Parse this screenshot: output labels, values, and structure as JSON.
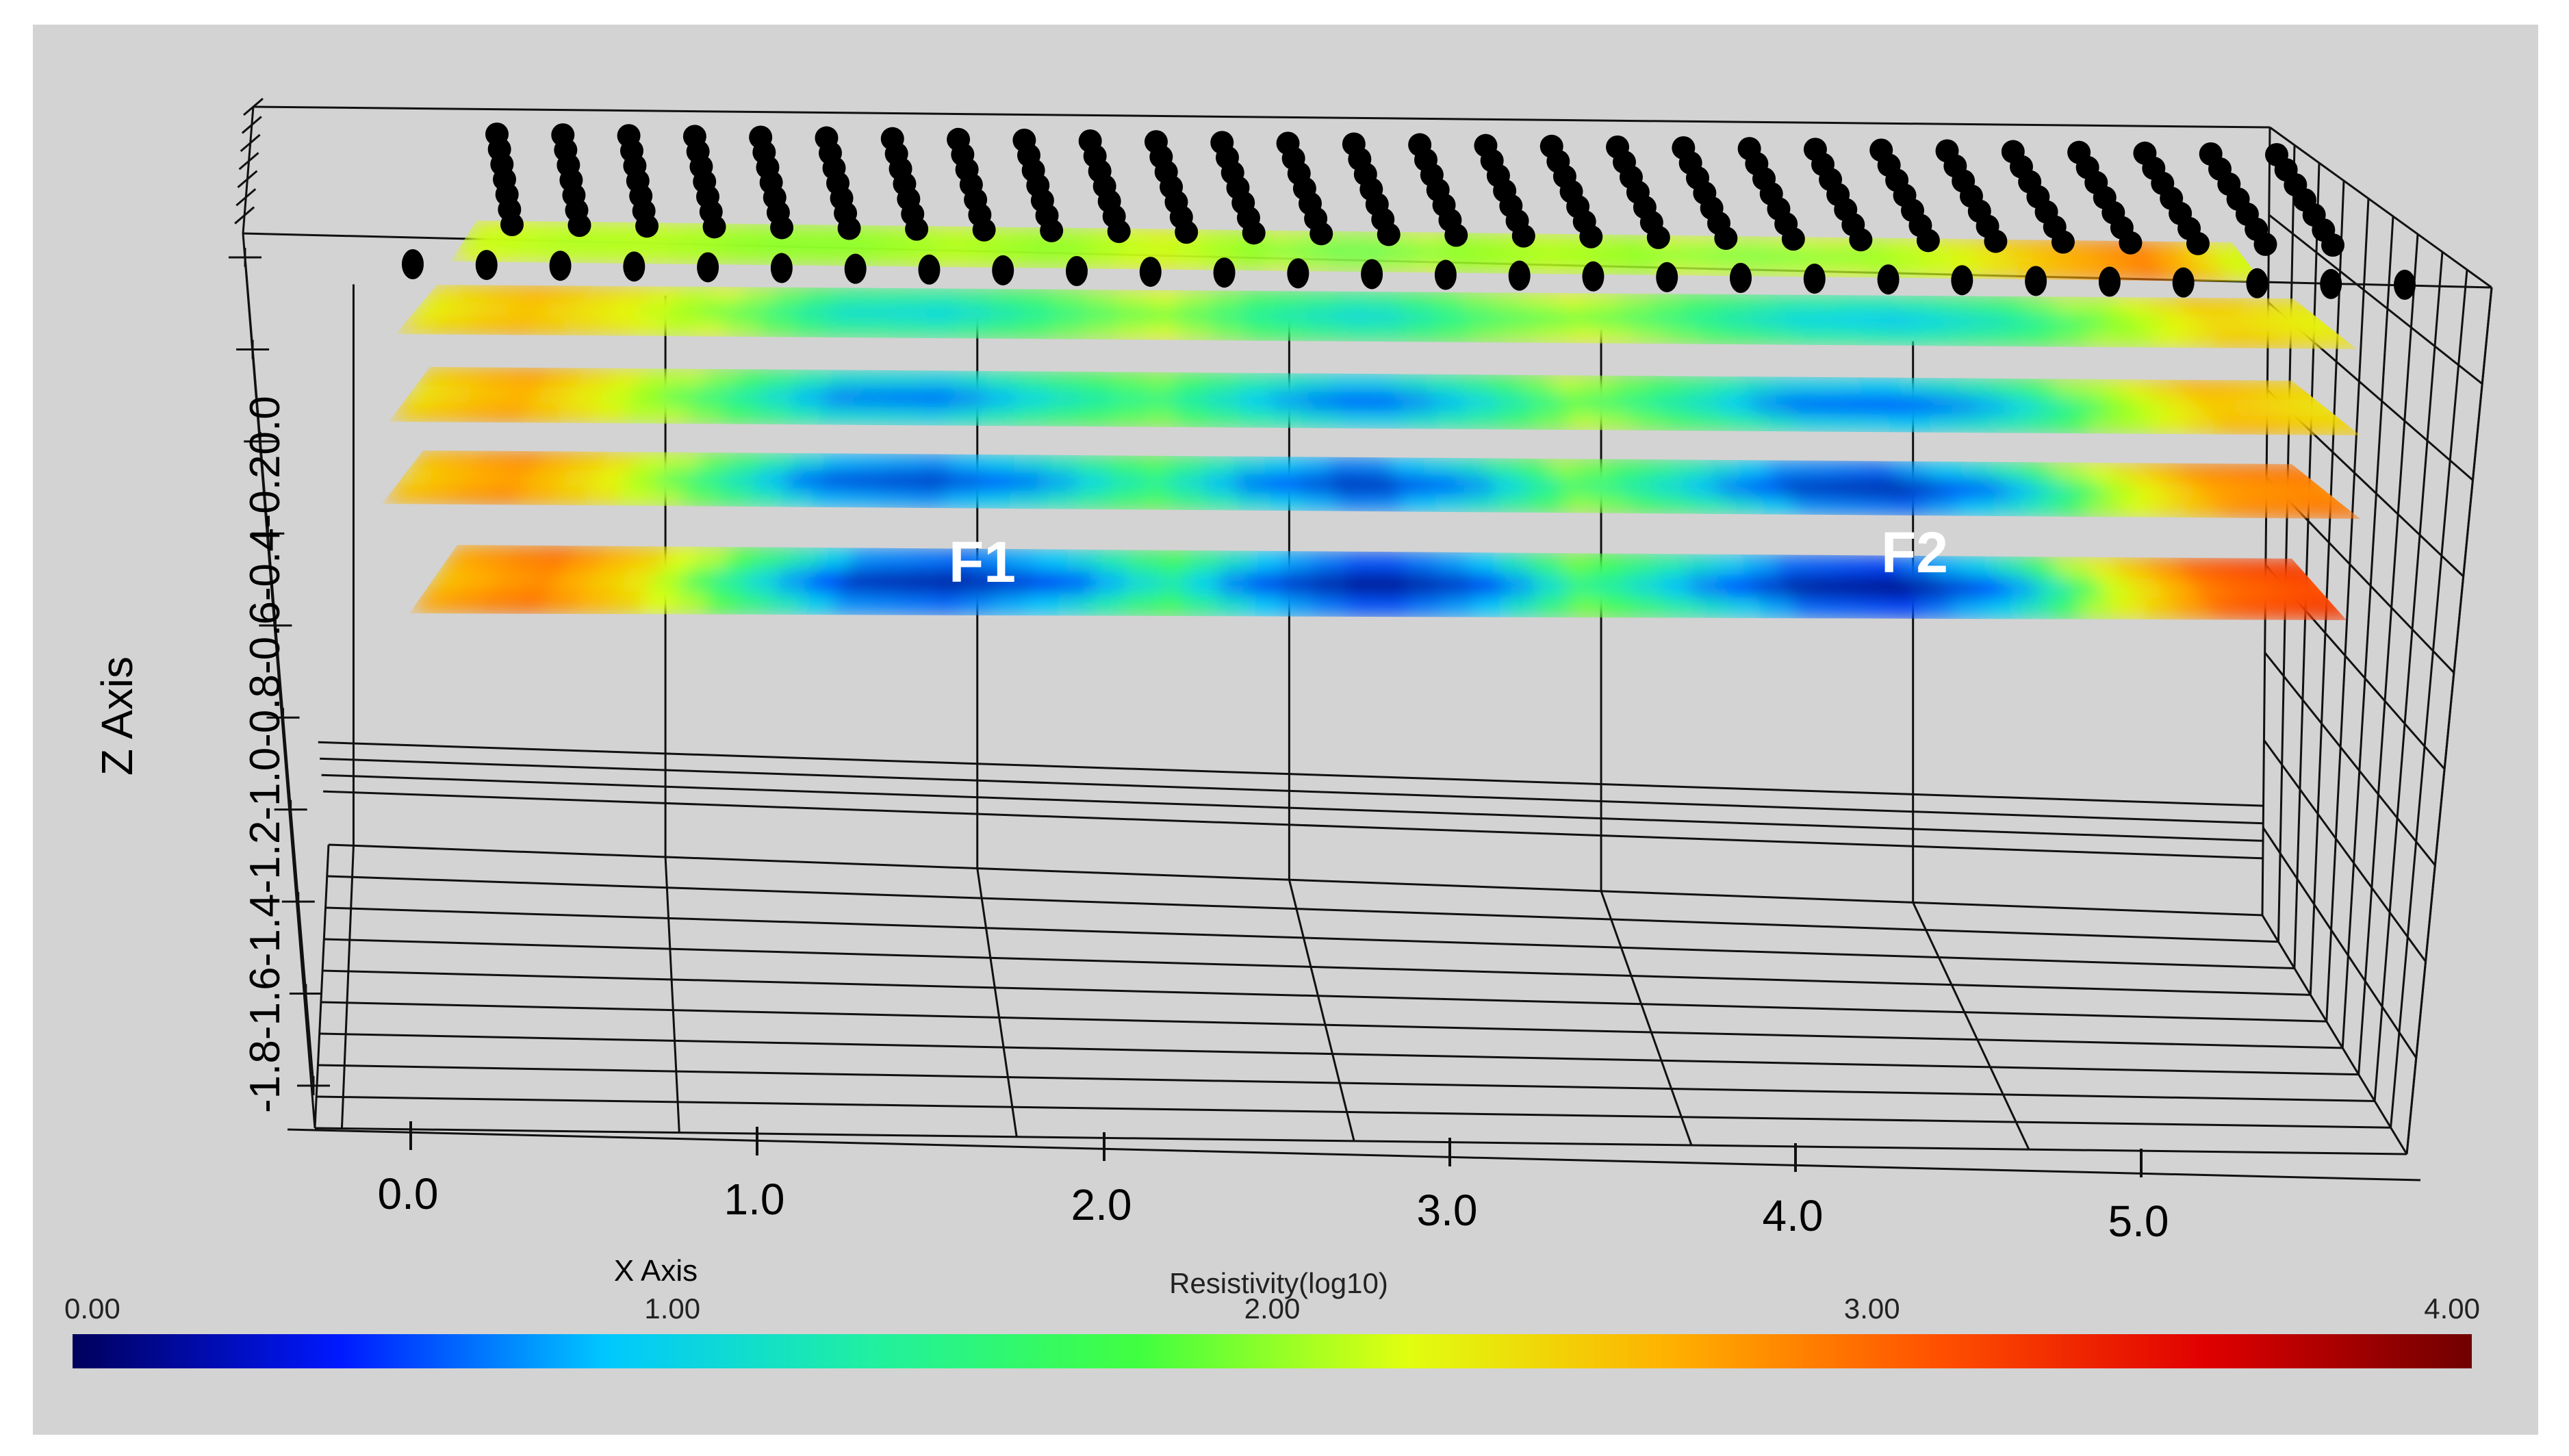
{
  "chart_data": {
    "type": "heatmap",
    "title": "",
    "xlabel": "X Axis",
    "zlabel": "Z Axis",
    "x_ticks": [
      "0.0",
      "1.0",
      "2.0",
      "3.0",
      "4.0",
      "5.0"
    ],
    "z_ticks": [
      "0.0",
      "-0.2",
      "-0.4",
      "-0.6",
      "-0.8",
      "-1.0",
      "-1.2",
      "-1.4",
      "-1.6",
      "-1.8"
    ],
    "z_axis_text": "-1.8-1.6-1.4-1.2-1.0-0.8-0.6-0.4-0.20.0",
    "xlim": [
      0.0,
      5.6
    ],
    "zlim": [
      -1.8,
      0.0
    ],
    "depth_slices": 5,
    "electrode_rows": 2,
    "electrodes_per_row": 28,
    "grid": true,
    "colorbar": {
      "label": "Resistivity(log10)",
      "min": 0.0,
      "max": 4.0,
      "tick_labels": [
        "0.00",
        "1.00",
        "2.00",
        "3.00",
        "4.00"
      ],
      "colors": [
        "#00005c",
        "#0018ff",
        "#00c8ff",
        "#20f0a0",
        "#40ff40",
        "#e0ff10",
        "#ffb000",
        "#ff5000",
        "#e00000",
        "#700000"
      ]
    },
    "annotations": [
      {
        "text": "F1",
        "x": 1.5,
        "slice": 5
      },
      {
        "text": "F2",
        "x": 4.2,
        "slice": 5
      }
    ]
  }
}
